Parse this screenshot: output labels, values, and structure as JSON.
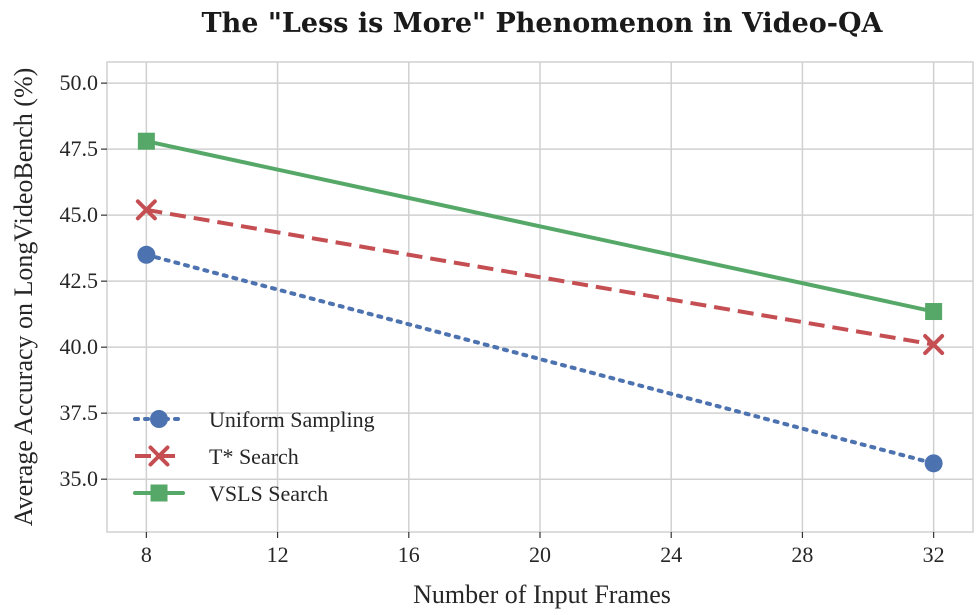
{
  "chart_data": {
    "type": "line",
    "title": "The \"Less is More\" Phenomenon in Video-QA",
    "xlabel": "Number of Input Frames",
    "ylabel": "Average Accuracy on LongVideoBench (%)",
    "xlim": [
      6.8,
      33.2
    ],
    "ylim": [
      33.0,
      50.8
    ],
    "xticks": [
      8,
      12,
      16,
      20,
      24,
      28,
      32
    ],
    "xtick_labels": [
      "8",
      "12",
      "16",
      "20",
      "24",
      "28",
      "32"
    ],
    "yticks": [
      35.0,
      37.5,
      40.0,
      42.5,
      45.0,
      47.5,
      50.0
    ],
    "ytick_labels": [
      "35.0",
      "37.5",
      "40.0",
      "42.5",
      "45.0",
      "47.5",
      "50.0"
    ],
    "grid": true,
    "legend_position": "lower-left",
    "x": [
      8,
      32
    ],
    "series": [
      {
        "name": "Uniform Sampling",
        "values": [
          43.5,
          35.6
        ],
        "color": "#4c72b0",
        "marker": "circle",
        "linestyle": "dotted"
      },
      {
        "name": "T* Search",
        "values": [
          45.2,
          40.1
        ],
        "color": "#c44e52",
        "marker": "x",
        "linestyle": "dashed"
      },
      {
        "name": "VSLS Search",
        "values": [
          47.8,
          41.35
        ],
        "color": "#55a868",
        "marker": "square",
        "linestyle": "solid"
      }
    ]
  }
}
